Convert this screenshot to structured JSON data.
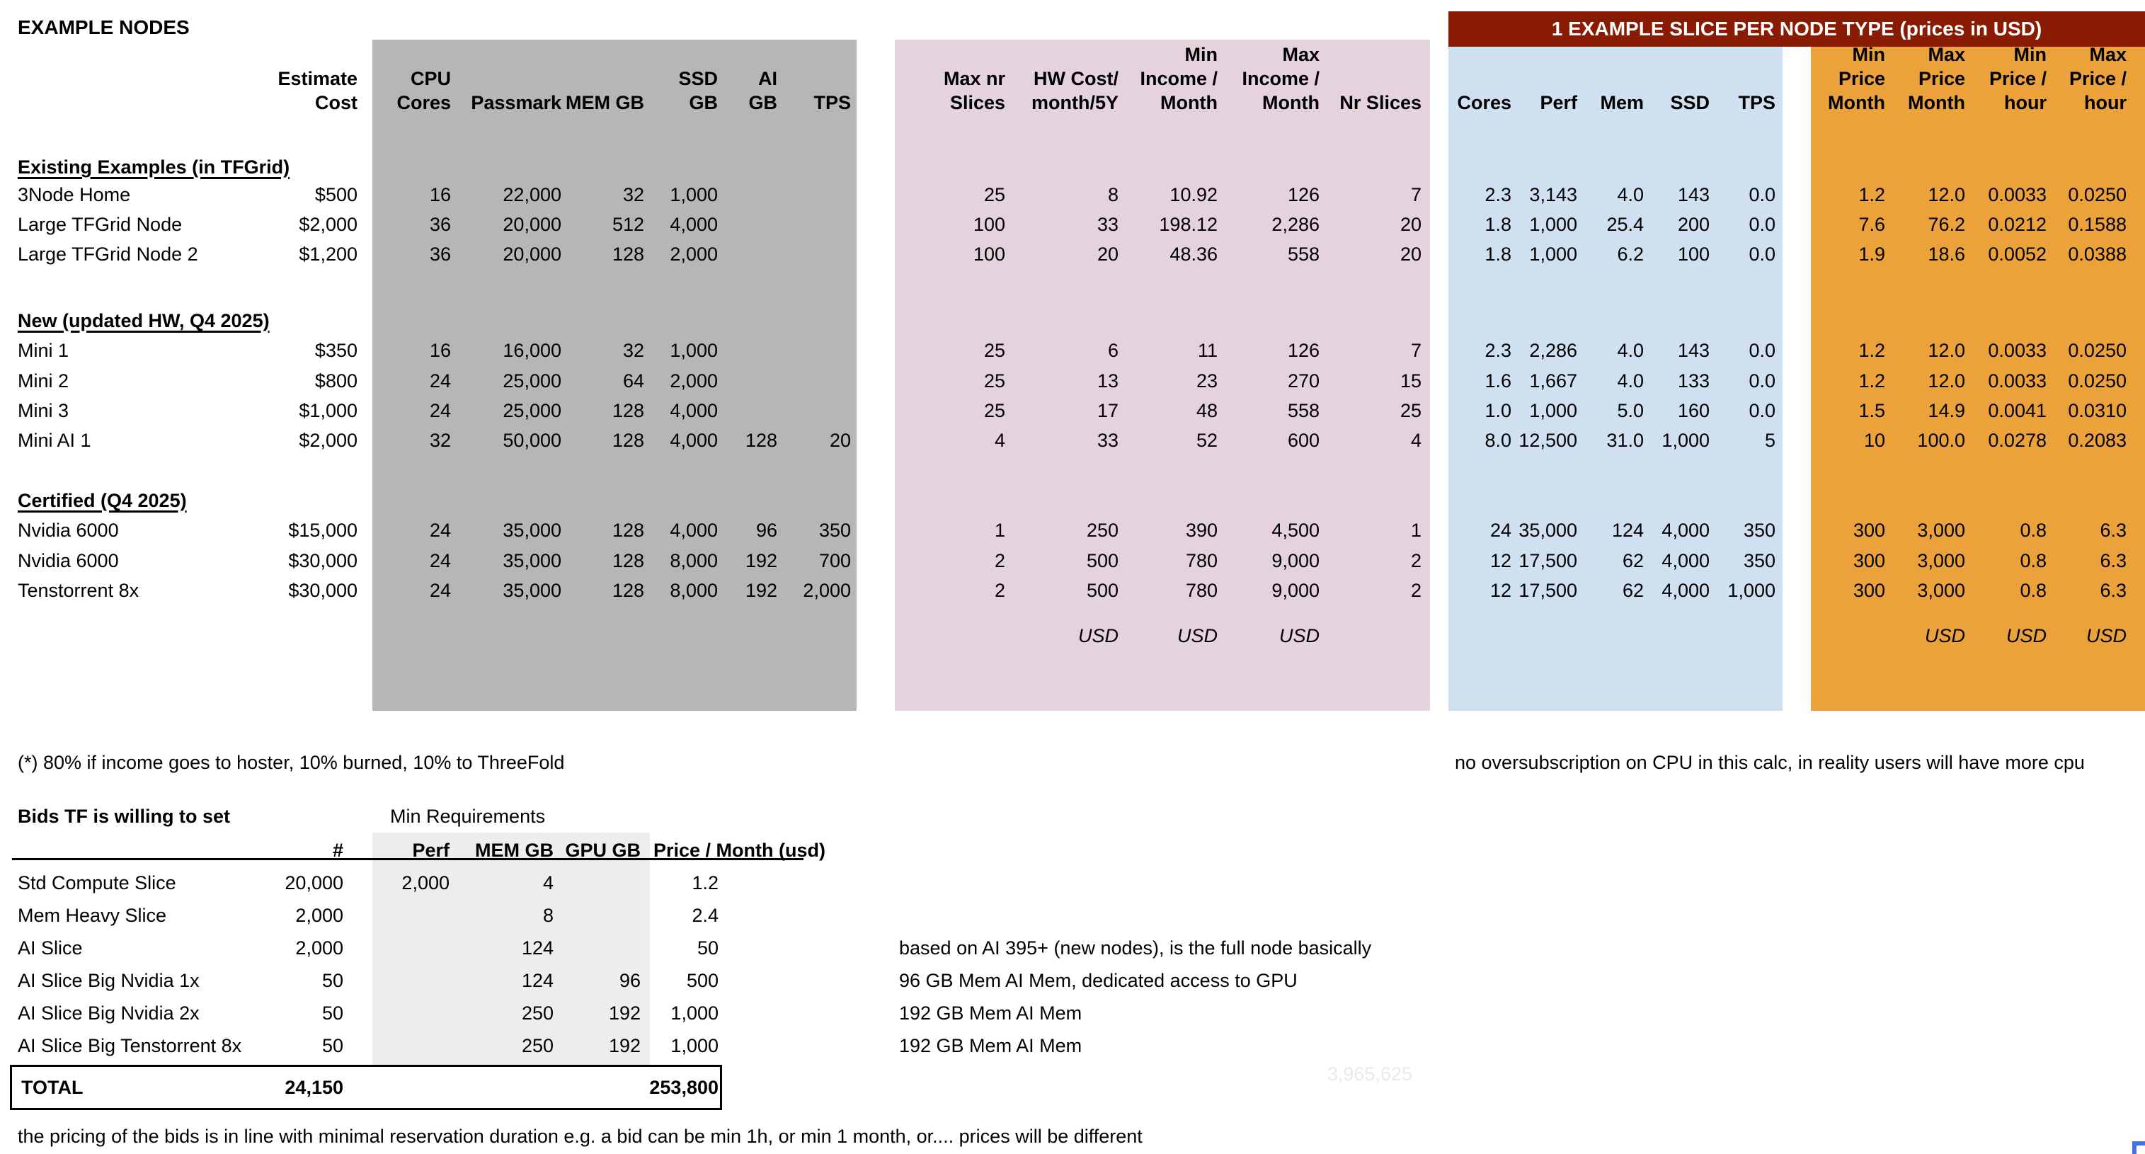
{
  "title": "EXAMPLE NODES",
  "banner_label": "1 EXAMPLE SLICE PER NODE TYPE (prices in USD)",
  "main_table": {
    "headers": [
      "",
      "Estimate\nCost",
      "CPU\nCores",
      "Passmark",
      "MEM GB",
      "SSD\nGB",
      "AI\nGB",
      "TPS",
      "Max nr\nSlices",
      "HW Cost/\nmonth/5Y",
      "Min\nIncome /\nMonth",
      "Max\nIncome /\nMonth",
      "Nr Slices",
      "Cores",
      "Perf",
      "Mem",
      "SSD",
      "TPS",
      "Min\nPrice\nMonth",
      "Max\nPrice\nMonth",
      "Min\nPrice /\nhour",
      "Max\nPrice /\nhour"
    ],
    "rows": [
      {
        "kind": "section",
        "label": "Existing Examples (in TFGrid)"
      },
      {
        "kind": "data",
        "cells": [
          "3Node Home",
          "$500",
          "16",
          "22,000",
          "32",
          "1,000",
          "",
          "",
          "25",
          "8",
          "10.92",
          "126",
          "7",
          "2.3",
          "3,143",
          "4.0",
          "143",
          "0.0",
          "1.2",
          "12.0",
          "0.0033",
          "0.0250"
        ]
      },
      {
        "kind": "data",
        "cells": [
          "Large TFGrid Node",
          "$2,000",
          "36",
          "20,000",
          "512",
          "4,000",
          "",
          "",
          "100",
          "33",
          "198.12",
          "2,286",
          "20",
          "1.8",
          "1,000",
          "25.4",
          "200",
          "0.0",
          "7.6",
          "76.2",
          "0.0212",
          "0.1588"
        ]
      },
      {
        "kind": "data",
        "cells": [
          "Large TFGrid Node 2",
          "$1,200",
          "36",
          "20,000",
          "128",
          "2,000",
          "",
          "",
          "100",
          "20",
          "48.36",
          "558",
          "20",
          "1.8",
          "1,000",
          "6.2",
          "100",
          "0.0",
          "1.9",
          "18.6",
          "0.0052",
          "0.0388"
        ]
      },
      {
        "kind": "section",
        "label": "New (updated HW, Q4 2025)"
      },
      {
        "kind": "data",
        "cells": [
          "Mini 1",
          "$350",
          "16",
          "16,000",
          "32",
          "1,000",
          "",
          "",
          "25",
          "6",
          "11",
          "126",
          "7",
          "2.3",
          "2,286",
          "4.0",
          "143",
          "0.0",
          "1.2",
          "12.0",
          "0.0033",
          "0.0250"
        ]
      },
      {
        "kind": "data",
        "cells": [
          "Mini 2",
          "$800",
          "24",
          "25,000",
          "64",
          "2,000",
          "",
          "",
          "25",
          "13",
          "23",
          "270",
          "15",
          "1.6",
          "1,667",
          "4.0",
          "133",
          "0.0",
          "1.2",
          "12.0",
          "0.0033",
          "0.0250"
        ]
      },
      {
        "kind": "data",
        "cells": [
          "Mini 3",
          "$1,000",
          "24",
          "25,000",
          "128",
          "4,000",
          "",
          "",
          "25",
          "17",
          "48",
          "558",
          "25",
          "1.0",
          "1,000",
          "5.0",
          "160",
          "0.0",
          "1.5",
          "14.9",
          "0.0041",
          "0.0310"
        ]
      },
      {
        "kind": "data",
        "cells": [
          "Mini AI 1",
          "$2,000",
          "32",
          "50,000",
          "128",
          "4,000",
          "128",
          "20",
          "4",
          "33",
          "52",
          "600",
          "4",
          "8.0",
          "12,500",
          "31.0",
          "1,000",
          "5",
          "10",
          "100.0",
          "0.0278",
          "0.2083"
        ]
      },
      {
        "kind": "section",
        "label": "Certified (Q4 2025)"
      },
      {
        "kind": "data",
        "cells": [
          "Nvidia 6000",
          "$15,000",
          "24",
          "35,000",
          "128",
          "4,000",
          "96",
          "350",
          "1",
          "250",
          "390",
          "4,500",
          "1",
          "24",
          "35,000",
          "124",
          "4,000",
          "350",
          "300",
          "3,000",
          "0.8",
          "6.3"
        ]
      },
      {
        "kind": "data",
        "cells": [
          "Nvidia 6000",
          "$30,000",
          "24",
          "35,000",
          "128",
          "8,000",
          "192",
          "700",
          "2",
          "500",
          "780",
          "9,000",
          "2",
          "12",
          "17,500",
          "62",
          "4,000",
          "350",
          "300",
          "3,000",
          "0.8",
          "6.3"
        ]
      },
      {
        "kind": "data",
        "cells": [
          "Tenstorrent 8x",
          "$30,000",
          "24",
          "35,000",
          "128",
          "8,000",
          "192",
          "2,000",
          "2",
          "500",
          "780",
          "9,000",
          "2",
          "12",
          "17,500",
          "62",
          "4,000",
          "1,000",
          "300",
          "3,000",
          "0.8",
          "6.3"
        ]
      },
      {
        "kind": "usd",
        "cells": {
          "9": "USD",
          "10": "USD",
          "11": "USD",
          "19": "USD",
          "20": "USD",
          "21": "USD"
        }
      }
    ]
  },
  "notes": {
    "hoster_split": "(*) 80% if income goes to hoster, 10% burned, 10% to ThreeFold",
    "oversubscription": "no oversubscription on CPU in this calc, in reality users will have more cpu",
    "pricing": "the pricing of the bids is in line with minimal reservation duration e.g. a bid can be min 1h, or min 1 month, or.... prices will be different"
  },
  "bids_table": {
    "title": "Bids TF is willing to set",
    "min_requirements_label": "Min Requirements",
    "headers": {
      "count": "#",
      "perf": "Perf",
      "mem_gb": "MEM GB",
      "gpu_gb": "GPU GB",
      "price": "Price / Month (usd)"
    },
    "rows": [
      {
        "label": "Std Compute Slice",
        "count": "20,000",
        "perf": "2,000",
        "mem_gb": "4",
        "gpu_gb": "",
        "price": "1.2",
        "note": ""
      },
      {
        "label": "Mem Heavy Slice",
        "count": "2,000",
        "perf": "",
        "mem_gb": "8",
        "gpu_gb": "",
        "price": "2.4",
        "note": ""
      },
      {
        "label": "AI Slice",
        "count": "2,000",
        "perf": "",
        "mem_gb": "124",
        "gpu_gb": "",
        "price": "50",
        "note": "based on AI 395+ (new nodes), is the full node basically"
      },
      {
        "label": "AI Slice Big Nvidia 1x",
        "count": "50",
        "perf": "",
        "mem_gb": "124",
        "gpu_gb": "96",
        "price": "500",
        "note": "96 GB Mem AI Mem, dedicated access to GPU"
      },
      {
        "label": "AI Slice Big Nvidia 2x",
        "count": "50",
        "perf": "",
        "mem_gb": "250",
        "gpu_gb": "192",
        "price": "1,000",
        "note": "192 GB Mem AI Mem"
      },
      {
        "label": "AI Slice Big Tenstorrent 8x",
        "count": "50",
        "perf": "",
        "mem_gb": "250",
        "gpu_gb": "192",
        "price": "1,000",
        "note": "192 GB Mem AI Mem"
      }
    ],
    "total": {
      "label": "TOTAL",
      "count": "24,150",
      "price": "253,800"
    },
    "ghost_value": "3,965,625"
  },
  "colors": {
    "gray_block": "#b6b6b6",
    "pink_block": "#e4d3dd",
    "blue_block": "#cfe0f1",
    "orange_block": "#eba23b",
    "banner_bg": "#8a1b03",
    "banner_text": "#ffffff",
    "minreq_shade": "#ededed",
    "ghost_text": "#e9e9e9",
    "selection_blue": "#4472e4"
  }
}
